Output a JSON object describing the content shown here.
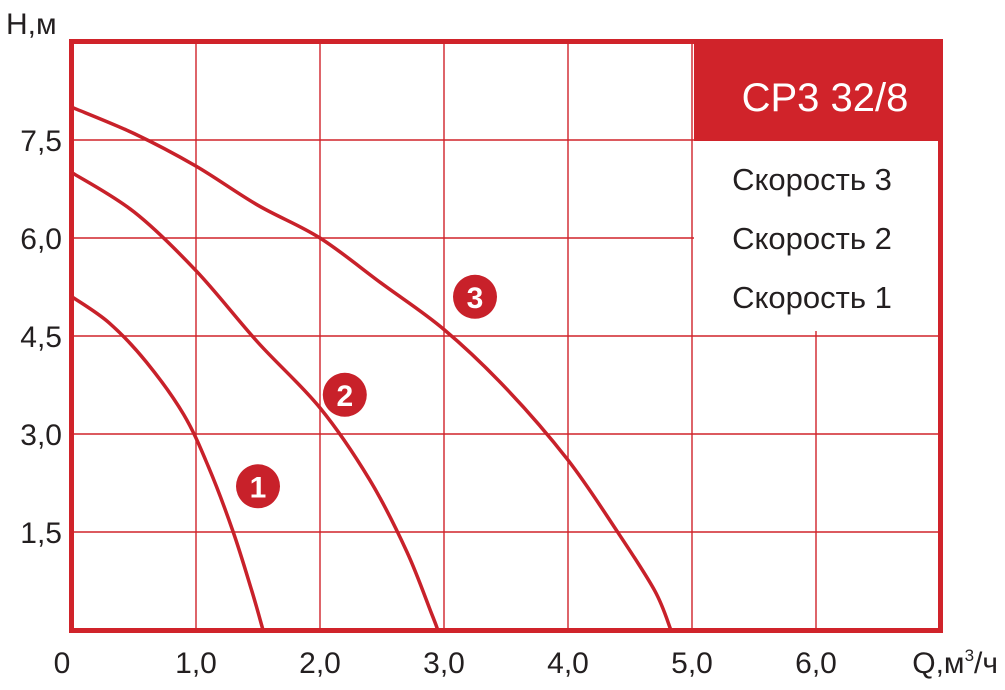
{
  "colors": {
    "frame": "#d0232a",
    "curve": "#c8212a",
    "grid": "#d0232a",
    "text": "#231f20",
    "badge": "#c8212a"
  },
  "chart_data": {
    "type": "line",
    "title": "",
    "xlabel": "Q,м",
    "xlabel_sup": "3",
    "xlabel_tail": "/ч",
    "ylabel": "H,м",
    "xlim": [
      0,
      7
    ],
    "ylim": [
      0,
      9
    ],
    "grid": true,
    "x_ticks": [
      {
        "v": 0,
        "label": "0"
      },
      {
        "v": 1,
        "label": "1,0"
      },
      {
        "v": 2,
        "label": "2,0"
      },
      {
        "v": 3,
        "label": "3,0"
      },
      {
        "v": 4,
        "label": "4,0"
      },
      {
        "v": 5,
        "label": "5,0"
      },
      {
        "v": 6,
        "label": "6,0"
      }
    ],
    "y_ticks": [
      {
        "v": 1.5,
        "label": "1,5"
      },
      {
        "v": 3.0,
        "label": "3,0"
      },
      {
        "v": 4.5,
        "label": "4,5"
      },
      {
        "v": 6.0,
        "label": "6,0"
      },
      {
        "v": 7.5,
        "label": "7,5"
      }
    ],
    "legend": {
      "placement": "top-right",
      "model": "CP3 32/8",
      "entries": [
        "Скорость 3",
        "Скорость 2",
        "Скорость 1"
      ]
    },
    "series": [
      {
        "label": "1",
        "label_at": [
          1.5,
          2.2
        ],
        "points": [
          [
            0,
            5.1
          ],
          [
            0.3,
            4.7
          ],
          [
            0.6,
            4.1
          ],
          [
            0.9,
            3.3
          ],
          [
            1.1,
            2.5
          ],
          [
            1.3,
            1.5
          ],
          [
            1.45,
            0.6
          ],
          [
            1.54,
            0
          ]
        ]
      },
      {
        "label": "2",
        "label_at": [
          2.2,
          3.6
        ],
        "points": [
          [
            0,
            7.0
          ],
          [
            0.5,
            6.4
          ],
          [
            1.0,
            5.5
          ],
          [
            1.5,
            4.4
          ],
          [
            2.0,
            3.4
          ],
          [
            2.4,
            2.3
          ],
          [
            2.7,
            1.2
          ],
          [
            2.9,
            0.25
          ],
          [
            2.95,
            0
          ]
        ]
      },
      {
        "label": "3",
        "label_at": [
          3.25,
          5.1
        ],
        "points": [
          [
            0,
            8.0
          ],
          [
            0.5,
            7.6
          ],
          [
            1.0,
            7.1
          ],
          [
            1.5,
            6.5
          ],
          [
            2.0,
            6.0
          ],
          [
            2.5,
            5.3
          ],
          [
            3.0,
            4.6
          ],
          [
            3.5,
            3.7
          ],
          [
            4.0,
            2.6
          ],
          [
            4.4,
            1.5
          ],
          [
            4.7,
            0.6
          ],
          [
            4.83,
            0
          ]
        ]
      }
    ]
  }
}
